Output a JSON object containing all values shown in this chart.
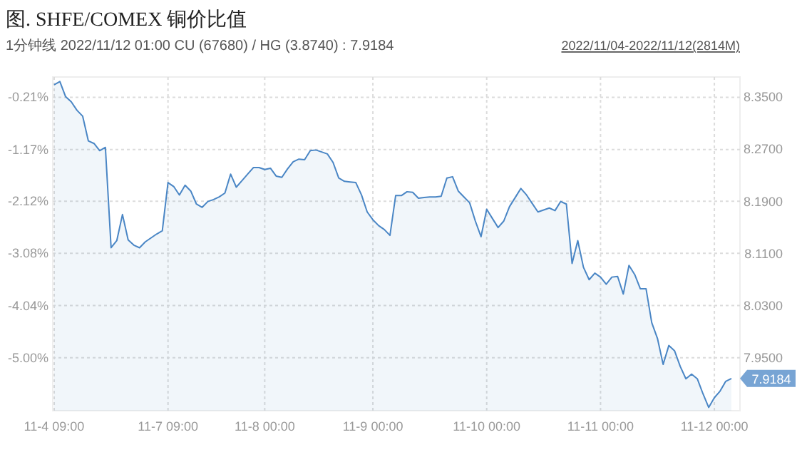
{
  "chart_data": {
    "type": "area",
    "title": "图. SHFE/COMEX 铜价比值",
    "subtitle": "1分钟线 2022/11/12 01:00 CU (67680) / HG (3.8740) : 7.9184",
    "annotations": [
      "2022/11/04-2022/11/12(2814M)"
    ],
    "categories": [
      "11-4 09:00",
      null,
      null,
      null,
      null,
      null,
      null,
      null,
      null,
      null,
      null,
      null,
      null,
      null,
      null,
      null,
      null,
      null,
      null,
      null,
      "11-7 09:00",
      null,
      null,
      null,
      null,
      null,
      null,
      null,
      null,
      null,
      null,
      null,
      null,
      null,
      null,
      null,
      null,
      "11-8 00:00",
      null,
      null,
      null,
      null,
      null,
      null,
      null,
      null,
      null,
      null,
      null,
      null,
      null,
      null,
      null,
      null,
      null,
      null,
      "11-9 00:00",
      null,
      null,
      null,
      null,
      null,
      null,
      null,
      null,
      null,
      null,
      null,
      null,
      null,
      null,
      null,
      null,
      null,
      null,
      null,
      "11-10 00:00",
      null,
      null,
      null,
      null,
      null,
      null,
      null,
      null,
      null,
      null,
      null,
      null,
      null,
      null,
      null,
      null,
      null,
      null,
      null,
      "11-11 00:00",
      null,
      null,
      null,
      null,
      null,
      null,
      null,
      null,
      null,
      null,
      null,
      null,
      null,
      null,
      null,
      null,
      null,
      null,
      null,
      "11-12 00:00",
      null,
      null,
      null
    ],
    "series": [
      {
        "color": "#4a86c5",
        "axis": "y2",
        "values": [
          8.369,
          8.374,
          8.351,
          8.343,
          8.33,
          8.321,
          8.283,
          8.279,
          8.268,
          8.273,
          8.119,
          8.13,
          8.17,
          8.131,
          8.123,
          8.119,
          8.128,
          8.134,
          8.14,
          8.145,
          8.219,
          8.213,
          8.2,
          8.215,
          8.206,
          8.186,
          8.181,
          8.19,
          8.193,
          8.197,
          8.203,
          8.232,
          8.212,
          8.222,
          8.232,
          8.242,
          8.242,
          8.239,
          8.241,
          8.229,
          8.227,
          8.24,
          8.251,
          8.255,
          8.254,
          8.268,
          8.269,
          8.266,
          8.263,
          8.25,
          8.226,
          8.221,
          8.22,
          8.219,
          8.2,
          8.174,
          8.162,
          8.153,
          8.147,
          8.138,
          8.199,
          8.199,
          8.205,
          8.204,
          8.195,
          8.196,
          8.197,
          8.197,
          8.198,
          8.226,
          8.228,
          8.206,
          8.197,
          8.188,
          8.16,
          8.136,
          8.178,
          8.164,
          8.15,
          8.16,
          8.182,
          8.196,
          8.21,
          8.2,
          8.187,
          8.174,
          8.177,
          8.18,
          8.176,
          8.19,
          8.186,
          8.095,
          8.13,
          8.089,
          8.07,
          8.08,
          8.074,
          8.063,
          8.074,
          8.075,
          8.048,
          8.092,
          8.078,
          8.056,
          8.056,
          8.004,
          7.98,
          7.94,
          7.969,
          7.961,
          7.937,
          7.918,
          7.925,
          7.918,
          7.895,
          7.874,
          7.889,
          7.899,
          7.914,
          7.9184
        ],
        "value_labels": [
          null,
          null,
          null,
          null,
          null,
          null,
          null,
          null,
          null,
          null,
          null,
          null,
          null,
          null,
          null,
          null,
          null,
          null,
          null,
          null,
          null,
          null,
          null,
          null,
          null,
          null,
          null,
          null,
          null,
          null,
          null,
          null,
          null,
          null,
          null,
          null,
          null,
          null,
          null,
          null,
          null,
          null,
          null,
          null,
          null,
          null,
          null,
          null,
          null,
          null,
          null,
          null,
          null,
          null,
          null,
          null,
          null,
          null,
          null,
          null,
          null,
          null,
          null,
          null,
          null,
          null,
          null,
          null,
          null,
          null,
          null,
          null,
          null,
          null,
          null,
          null,
          null,
          null,
          null,
          null,
          null,
          null,
          null,
          null,
          null,
          null,
          null,
          null,
          null,
          null,
          null,
          null,
          null,
          null,
          null,
          null,
          null,
          null,
          null,
          null,
          null,
          null,
          null,
          null,
          null,
          null,
          null,
          null,
          null,
          null,
          null,
          null,
          null,
          null,
          null,
          null,
          null,
          null,
          null,
          "7.9184"
        ]
      }
    ],
    "ylim": [
      -5.973,
      0.163
    ],
    "yticks": [
      {
        "value": -0.21,
        "label": "-0.21%"
      },
      {
        "value": -1.17,
        "label": "-1.17%"
      },
      {
        "value": -2.12,
        "label": "-2.12%"
      },
      {
        "value": -3.08,
        "label": "-3.08%"
      },
      {
        "value": -4.04,
        "label": "-4.04%"
      },
      {
        "value": -5.0,
        "label": "-5.00%"
      }
    ],
    "y2lim": [
      7.869,
      8.381
    ],
    "y2ticks": [
      {
        "value": 8.35,
        "label": "8.3500"
      },
      {
        "value": 8.27,
        "label": "8.2700"
      },
      {
        "value": 8.19,
        "label": "8.1900"
      },
      {
        "value": 8.11,
        "label": "8.1100"
      },
      {
        "value": 8.03,
        "label": "8.0300"
      },
      {
        "value": 7.95,
        "label": "7.9500"
      }
    ],
    "grid": true
  }
}
